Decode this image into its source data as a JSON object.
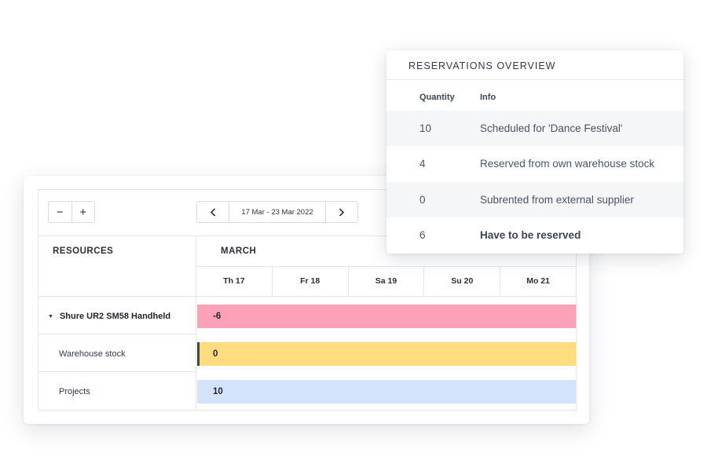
{
  "planner": {
    "zoom_out_label": "−",
    "zoom_in_label": "+",
    "prev_icon": "chevron-left-icon",
    "next_icon": "chevron-right-icon",
    "date_range": "17 Mar - 23 Mar 2022",
    "resources_header": "RESOURCES",
    "month": "MARCH",
    "days": [
      "Th 17",
      "Fr 18",
      "Sa 19",
      "Su 20",
      "Mo 21"
    ],
    "rows": [
      {
        "label": "Shure UR2 SM58 Handheld",
        "value": "-6",
        "color": "#fca1b7"
      },
      {
        "label": "Warehouse stock",
        "value": "0",
        "color": "#ffdd7f"
      },
      {
        "label": "Projects",
        "value": "10",
        "color": "#d2e3fb"
      }
    ]
  },
  "overview": {
    "title": "RESERVATIONS OVERVIEW",
    "columns": [
      "Quantity",
      "Info"
    ],
    "rows": [
      {
        "quantity": "10",
        "info": "Scheduled for 'Dance Festival'"
      },
      {
        "quantity": "4",
        "info": "Reserved from own warehouse stock"
      },
      {
        "quantity": "0",
        "info": "Subrented from external supplier"
      },
      {
        "quantity": "6",
        "info": "Have to be reserved"
      }
    ]
  }
}
